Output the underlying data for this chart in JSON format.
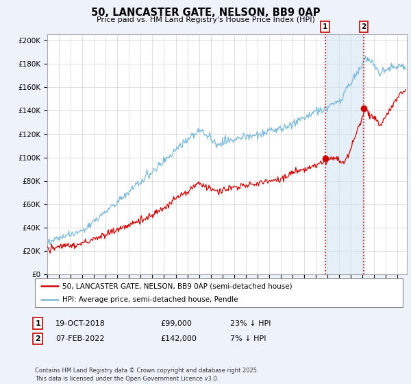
{
  "title": "50, LANCASTER GATE, NELSON, BB9 0AP",
  "subtitle": "Price paid vs. HM Land Registry's House Price Index (HPI)",
  "ylabel_ticks": [
    "£0",
    "£20K",
    "£40K",
    "£60K",
    "£80K",
    "£100K",
    "£120K",
    "£140K",
    "£160K",
    "£180K",
    "£200K"
  ],
  "ytick_values": [
    0,
    20000,
    40000,
    60000,
    80000,
    100000,
    120000,
    140000,
    160000,
    180000,
    200000
  ],
  "ylim": [
    0,
    205000
  ],
  "xlim_start": 1995.0,
  "xlim_end": 2025.8,
  "hpi_color": "#7ab8d9",
  "price_color": "#cc0000",
  "vline_color": "#cc0000",
  "sale1_x": 2018.8,
  "sale1_y": 99000,
  "sale2_x": 2022.1,
  "sale2_y": 142000,
  "legend_label_red": "50, LANCASTER GATE, NELSON, BB9 0AP (semi-detached house)",
  "legend_label_blue": "HPI: Average price, semi-detached house, Pendle",
  "table_row1": [
    "1",
    "19-OCT-2018",
    "£99,000",
    "23% ↓ HPI"
  ],
  "table_row2": [
    "2",
    "07-FEB-2022",
    "£142,000",
    "7% ↓ HPI"
  ],
  "footnote": "Contains HM Land Registry data © Crown copyright and database right 2025.\nThis data is licensed under the Open Government Licence v3.0.",
  "background_color": "#eef2fa",
  "plot_bg_color": "#ffffff",
  "grid_color": "#d0d0d0",
  "span_color": "#cce0f0"
}
